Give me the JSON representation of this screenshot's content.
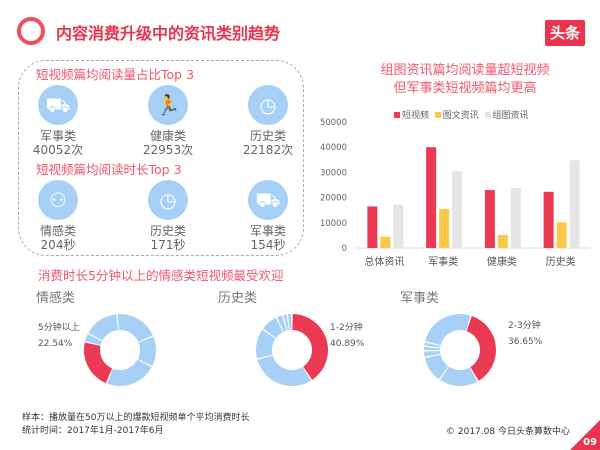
{
  "header": {
    "title": "内容消费升级中的资讯类别趋势",
    "logo": "头条"
  },
  "top_read": {
    "heading": "短视频篇均阅读量占比Top 3",
    "items": [
      {
        "icon": "bulldozer-icon",
        "name": "军事类",
        "value": "40052次"
      },
      {
        "icon": "runner-icon",
        "name": "健康类",
        "value": "22953次"
      },
      {
        "icon": "clock-icon",
        "name": "历史类",
        "value": "22182次"
      }
    ]
  },
  "top_time": {
    "heading": "短视频篇均阅读时长Top 3",
    "items": [
      {
        "icon": "couple-icon",
        "name": "情感类",
        "value": "204秒"
      },
      {
        "icon": "clock-icon",
        "name": "历史类",
        "value": "171秒"
      },
      {
        "icon": "bulldozer-icon",
        "name": "军事类",
        "value": "154秒"
      }
    ]
  },
  "chart_data": [
    {
      "type": "bar",
      "title": "组图资讯篇均阅读量超短视频",
      "subtitle": "但军事类短视频篇均更高",
      "categories": [
        "总体资讯",
        "军事类",
        "健康类",
        "历史类"
      ],
      "series": [
        {
          "name": "短视频",
          "color": "#ea3a54",
          "values": [
            16500,
            40000,
            23000,
            22300
          ]
        },
        {
          "name": "图文资讯",
          "color": "#fbc94a",
          "values": [
            4500,
            15500,
            5200,
            10200
          ]
        },
        {
          "name": "组图资讯",
          "color": "#e6e4e4",
          "values": [
            17200,
            30500,
            23800,
            34800
          ]
        }
      ],
      "ylim": [
        0,
        50000
      ],
      "yticks": [
        "0",
        "10000",
        "20000",
        "30000",
        "40000",
        "50000"
      ],
      "legend": "top"
    },
    {
      "type": "pie",
      "title": "情感类",
      "highlight": {
        "label": "5分钟以上",
        "value": "22.54%"
      },
      "values": [
        22.54,
        4,
        16,
        20,
        14,
        23.46
      ],
      "colors": [
        "#ea3a54",
        "#a7d0f7"
      ]
    },
    {
      "type": "pie",
      "title": "历史类",
      "highlight": {
        "label": "1-2分钟",
        "value": "40.89%"
      },
      "values": [
        40.89,
        30,
        14,
        8,
        3,
        2,
        2.11
      ],
      "colors": [
        "#ea3a54",
        "#a7d0f7"
      ]
    },
    {
      "type": "pie",
      "title": "军事类",
      "highlight": {
        "label": "2-3分钟",
        "value": "36.65%"
      },
      "values": [
        36.65,
        18,
        12,
        3,
        2,
        2,
        26.35
      ],
      "colors": [
        "#ea3a54",
        "#a7d0f7"
      ]
    }
  ],
  "donut_heading": "消费时长5分钟以上的情感类短视频最受欢迎",
  "footer": {
    "sample": "样本：播放量在50万以上的爆款短视频单个平均消费时长",
    "period": "统计时间：2017年1月-2017年6月",
    "copyright": "© 2017.08 今日头条算数中心",
    "page": "09"
  }
}
